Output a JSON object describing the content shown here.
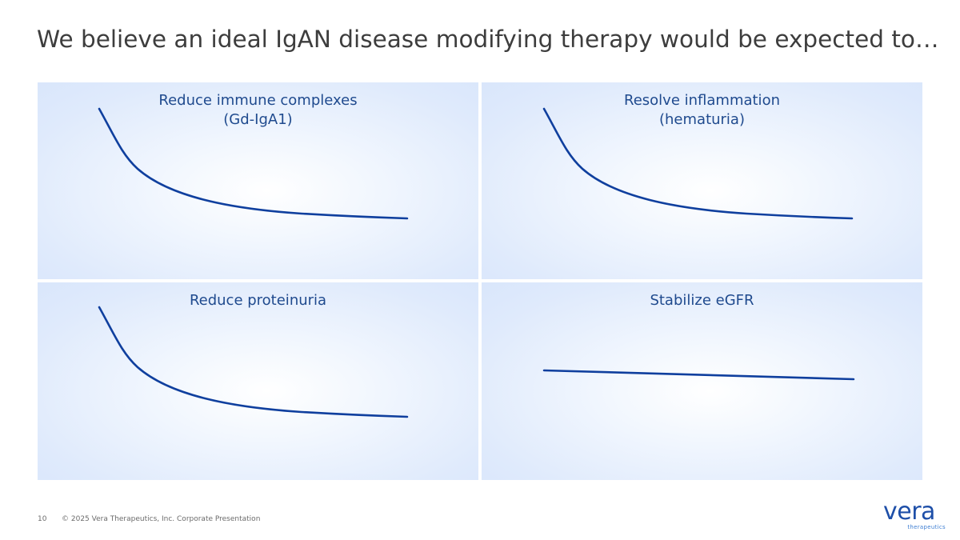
{
  "slide": {
    "title": "We believe an ideal IgAN disease modifying therapy would be expected to…"
  },
  "panels": [
    {
      "title_line1": "Reduce immune complexes",
      "title_line2": "(Gd-IgA1)",
      "trend": "decreasing"
    },
    {
      "title_line1": "Resolve inflammation",
      "title_line2": "(hematuria)",
      "trend": "decreasing"
    },
    {
      "title_line1": "Reduce proteinuria",
      "trend": "decreasing"
    },
    {
      "title_line1": "Stabilize eGFR",
      "trend": "stable"
    }
  ],
  "colors": {
    "curve": "#0f3f9e",
    "panel_title": "#1f4a8e",
    "panel_background": "#dfeafc"
  },
  "footer": {
    "page_number": "10",
    "copyright": "© 2025 Vera Therapeutics, Inc. Corporate Presentation"
  },
  "logo": {
    "wordmark": "vera",
    "tagline": "therapeutics"
  }
}
